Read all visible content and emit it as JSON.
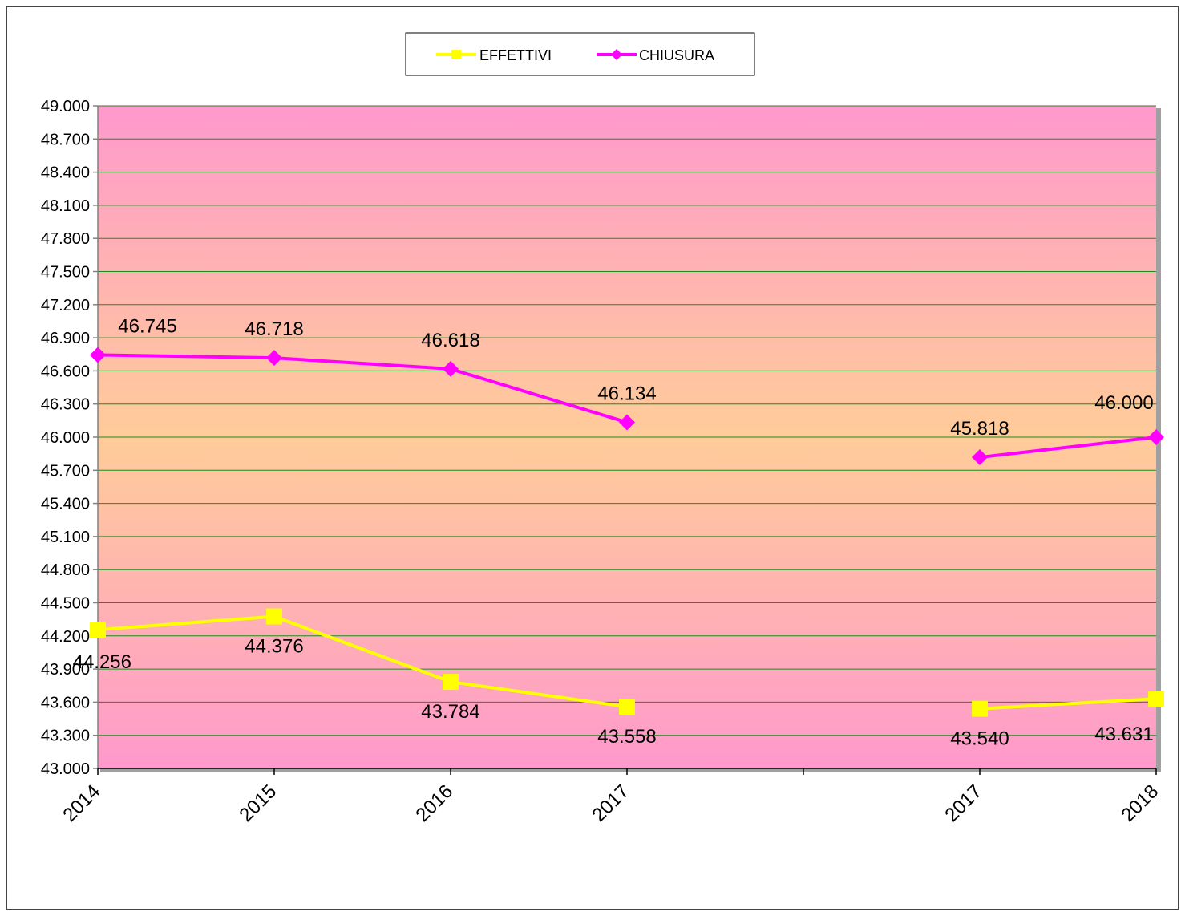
{
  "chart_data": {
    "type": "line",
    "title": "",
    "xlabel": "",
    "ylabel": "",
    "categories": [
      "2014",
      "2015",
      "2016",
      "2017",
      "",
      "2017",
      "2018"
    ],
    "ylim": [
      43000,
      49000
    ],
    "ytick_step": 300,
    "ytick_labels": [
      "43.000",
      "43.300",
      "43.600",
      "43.900",
      "44.200",
      "44.500",
      "44.800",
      "45.100",
      "45.400",
      "45.700",
      "46.000",
      "46.300",
      "46.600",
      "46.900",
      "47.200",
      "47.500",
      "47.800",
      "48.100",
      "48.400",
      "48.700",
      "49.000"
    ],
    "grid": true,
    "legend_position": "top-center",
    "series": [
      {
        "name": "EFFETTIVI",
        "color": "#ffff00",
        "marker": "square",
        "values": [
          44256,
          44376,
          43784,
          43558,
          null,
          43540,
          43631
        ],
        "labels": [
          "44.256",
          "44.376",
          "43.784",
          "43.558",
          "",
          "43.540",
          "43.631"
        ]
      },
      {
        "name": "CHIUSURA",
        "color": "#ff00ff",
        "marker": "diamond",
        "values": [
          46745,
          46718,
          46618,
          46134,
          null,
          45818,
          46000
        ],
        "labels": [
          "46.745",
          "46.718",
          "46.618",
          "46.134",
          "",
          "45.818",
          "46.000"
        ]
      }
    ]
  }
}
